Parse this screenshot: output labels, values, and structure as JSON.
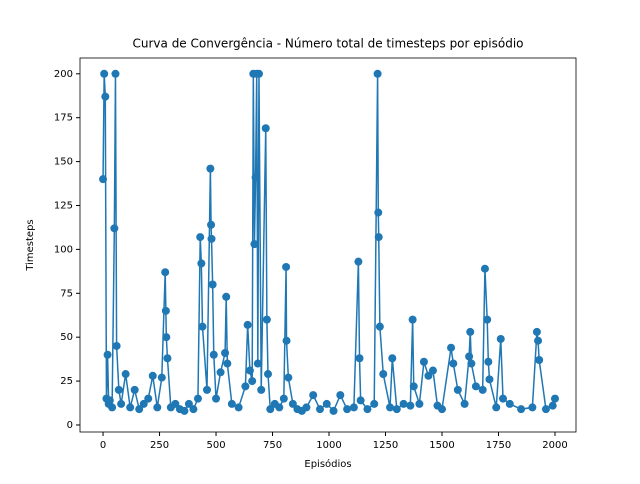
{
  "chart_data": {
    "type": "line",
    "title": "Curva de Convergência - Número total de timesteps por episódio",
    "x_label": "Episódios",
    "y_label": "Timesteps",
    "xlim": [
      -102,
      2093
    ],
    "ylim": [
      -4,
      209
    ],
    "xticks": [
      0,
      250,
      500,
      750,
      1000,
      1250,
      1500,
      1750,
      2000
    ],
    "yticks": [
      0,
      25,
      50,
      75,
      100,
      125,
      150,
      175,
      200
    ],
    "grid": false,
    "series": [
      {
        "name": "Timesteps",
        "color": "#1f77b4",
        "x": [
          0,
          5,
          10,
          15,
          20,
          25,
          30,
          40,
          50,
          55,
          60,
          70,
          80,
          100,
          120,
          140,
          160,
          180,
          200,
          220,
          240,
          260,
          275,
          278,
          280,
          285,
          300,
          320,
          340,
          360,
          380,
          400,
          420,
          430,
          435,
          440,
          460,
          475,
          478,
          480,
          485,
          490,
          500,
          520,
          540,
          545,
          550,
          570,
          600,
          630,
          640,
          650,
          660,
          665,
          670,
          675,
          680,
          685,
          690,
          700,
          720,
          725,
          730,
          740,
          760,
          780,
          800,
          810,
          812,
          820,
          840,
          860,
          880,
          900,
          930,
          960,
          990,
          1020,
          1050,
          1080,
          1110,
          1130,
          1135,
          1140,
          1170,
          1200,
          1215,
          1218,
          1220,
          1225,
          1240,
          1270,
          1280,
          1300,
          1330,
          1360,
          1370,
          1375,
          1400,
          1420,
          1440,
          1460,
          1480,
          1500,
          1540,
          1550,
          1570,
          1600,
          1620,
          1625,
          1630,
          1650,
          1680,
          1690,
          1700,
          1705,
          1710,
          1740,
          1760,
          1770,
          1800,
          1850,
          1900,
          1920,
          1925,
          1930,
          1960,
          1990,
          2000
        ],
        "values": [
          140,
          200,
          187,
          15,
          40,
          12,
          14,
          10,
          112,
          200,
          45,
          20,
          12,
          29,
          10,
          20,
          9,
          12,
          15,
          28,
          10,
          27,
          87,
          65,
          50,
          38,
          10,
          12,
          9,
          8,
          12,
          9,
          15,
          107,
          92,
          56,
          20,
          146,
          114,
          106,
          80,
          40,
          15,
          30,
          41,
          73,
          35,
          12,
          10,
          22,
          57,
          31,
          25,
          200,
          103,
          141,
          200,
          35,
          200,
          20,
          169,
          60,
          29,
          9,
          12,
          10,
          15,
          90,
          48,
          27,
          12,
          9,
          8,
          10,
          17,
          9,
          12,
          8,
          17,
          9,
          10,
          93,
          38,
          14,
          9,
          12,
          200,
          121,
          107,
          56,
          29,
          10,
          38,
          9,
          12,
          11,
          60,
          22,
          12,
          36,
          28,
          31,
          11,
          9,
          44,
          35,
          20,
          12,
          39,
          53,
          35,
          22,
          20,
          89,
          60,
          36,
          26,
          10,
          49,
          15,
          12,
          9,
          10,
          53,
          48,
          37,
          9,
          11,
          15
        ]
      }
    ]
  }
}
